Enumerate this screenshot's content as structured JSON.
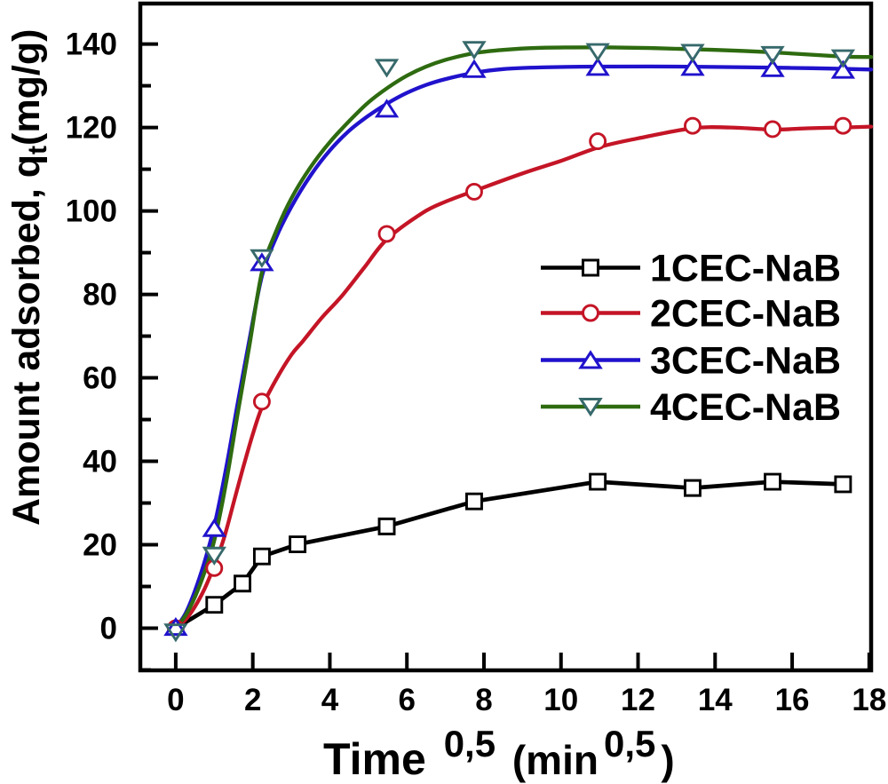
{
  "chart_data": {
    "type": "line",
    "title": "",
    "xlabel_parts": [
      {
        "text": "Time ",
        "style": "base"
      },
      {
        "text": "0,5",
        "style": "sup"
      },
      {
        "text": " (min",
        "style": "base_small"
      },
      {
        "text": "0,5",
        "style": "sup"
      },
      {
        "text": ")",
        "style": "base_small"
      }
    ],
    "ylabel_parts": [
      {
        "text": "Amount adsorbed, q",
        "style": "base"
      },
      {
        "text": "t",
        "style": "sub"
      },
      {
        "text": "(mg/g)",
        "style": "base"
      }
    ],
    "x_ticks": [
      0,
      2,
      4,
      6,
      8,
      10,
      12,
      14,
      16,
      18
    ],
    "x_tick_labels": [
      "0",
      "2",
      "4",
      "6",
      "8",
      "10",
      "12",
      "14",
      "16",
      "18"
    ],
    "y_ticks": [
      0,
      20,
      40,
      60,
      80,
      100,
      120,
      140
    ],
    "y_tick_labels": [
      "0",
      "20",
      "40",
      "60",
      "80",
      "100",
      "120",
      "140"
    ],
    "y_minor_ticks": [
      -10,
      10,
      30,
      50,
      70,
      90,
      110,
      130
    ],
    "xlim": [
      -0.92,
      18.05
    ],
    "ylim": [
      -10.1,
      149.7
    ],
    "grid": false,
    "legend_position": "inside right",
    "series": [
      {
        "name": "1CEC-NaB",
        "color": "#000000",
        "marker": "square",
        "marker_color": "#000000",
        "line": "polyline",
        "points_x": [
          0,
          1.0,
          1.732,
          2.236,
          3.162,
          5.477,
          7.746,
          10.954,
          13.416,
          15.492,
          17.321
        ],
        "points_y": [
          0,
          5.6,
          10.7,
          17.2,
          20.1,
          24.4,
          30.4,
          35.1,
          33.6,
          35.1,
          34.5
        ],
        "origin_marker": false
      },
      {
        "name": "2CEC-NaB",
        "color": "#c41526",
        "marker": "circle",
        "marker_color": "#c41526",
        "line": "smooth",
        "points_x": [
          0,
          1.0,
          2.236,
          5.477,
          7.746,
          10.954,
          13.416,
          15.492,
          17.321
        ],
        "points_y": [
          0,
          14.4,
          54.3,
          94.5,
          104.6,
          116.7,
          120.4,
          119.6,
          120.4
        ],
        "origin_marker": true,
        "curve_x": [
          0,
          0.25,
          0.5,
          0.75,
          1.0,
          1.25,
          1.5,
          1.75,
          2.0,
          2.24,
          2.6,
          3.0,
          3.3,
          3.8,
          4.3,
          4.9,
          5.48,
          6.4,
          7.0,
          7.75,
          9.0,
          10.0,
          11.0,
          12.0,
          13.4,
          14.4,
          15.5,
          16.4,
          17.3,
          18.05
        ],
        "curve_y": [
          0,
          2.0,
          5.2,
          9.5,
          15.0,
          21.5,
          30.0,
          38.5,
          46.5,
          53.0,
          59.5,
          65.5,
          68.8,
          74.5,
          79.5,
          86.5,
          93.2,
          99.5,
          102.2,
          104.8,
          109.0,
          112.0,
          115.3,
          117.4,
          119.8,
          120.0,
          119.5,
          119.8,
          120.0,
          120.2
        ]
      },
      {
        "name": "3CEC-NaB",
        "color": "#2012cc",
        "marker": "triangle_up",
        "marker_color": "#2012cc",
        "line": "smooth",
        "points_x": [
          0,
          1.0,
          2.236,
          5.477,
          7.746,
          10.954,
          13.416,
          15.492,
          17.321
        ],
        "points_y": [
          0.3,
          24.0,
          87.7,
          124.5,
          134.0,
          134.5,
          134.5,
          134.2,
          133.8
        ],
        "origin_marker": true,
        "curve_x": [
          0,
          0.25,
          0.5,
          0.75,
          1.0,
          1.3,
          1.6,
          1.9,
          2.24,
          2.6,
          3.0,
          3.5,
          4.0,
          4.5,
          5.0,
          5.5,
          6.0,
          6.5,
          7.0,
          7.75,
          8.5,
          9.5,
          11.0,
          13.0,
          15.0,
          16.5,
          18.05
        ],
        "curve_y": [
          0,
          3.5,
          9.0,
          16.0,
          24.5,
          38.0,
          53.5,
          68.5,
          84.5,
          93.5,
          101.0,
          108.5,
          114.5,
          119.2,
          122.8,
          125.8,
          128.3,
          130.2,
          131.6,
          133.1,
          134.0,
          134.4,
          134.6,
          134.6,
          134.4,
          134.2,
          133.9
        ]
      },
      {
        "name": "4CEC-NaB",
        "color": "#2e6b10",
        "marker": "triangle_down",
        "marker_color": "#37696b",
        "line": "smooth",
        "points_x": [
          0,
          1.0,
          2.236,
          5.477,
          7.746,
          10.954,
          13.416,
          15.492,
          17.321
        ],
        "points_y": [
          -1.0,
          17.4,
          88.7,
          134.3,
          138.6,
          138.1,
          137.9,
          137.4,
          136.6
        ],
        "origin_marker": true,
        "curve_x": [
          0,
          0.25,
          0.5,
          0.75,
          1.0,
          1.3,
          1.6,
          1.9,
          2.24,
          2.6,
          3.0,
          3.5,
          4.0,
          4.5,
          5.0,
          5.5,
          6.0,
          6.5,
          7.0,
          7.75,
          8.5,
          9.5,
          11.0,
          12.5,
          14.0,
          15.5,
          17.3,
          18.05
        ],
        "curve_y": [
          0,
          3.0,
          7.5,
          13.5,
          21.0,
          34.5,
          51.0,
          67.0,
          85.5,
          95.0,
          103.0,
          110.5,
          116.5,
          121.5,
          126.0,
          129.5,
          132.4,
          134.6,
          136.2,
          137.8,
          138.6,
          139.1,
          139.2,
          139.0,
          138.6,
          138.0,
          137.0,
          136.9
        ]
      }
    ],
    "legend": {
      "labels": [
        "1CEC-NaB",
        "2CEC-NaB",
        "3CEC-NaB",
        "4CEC-NaB"
      ]
    }
  },
  "style": {
    "background": "#ffffff",
    "axis_color": "#000000"
  }
}
